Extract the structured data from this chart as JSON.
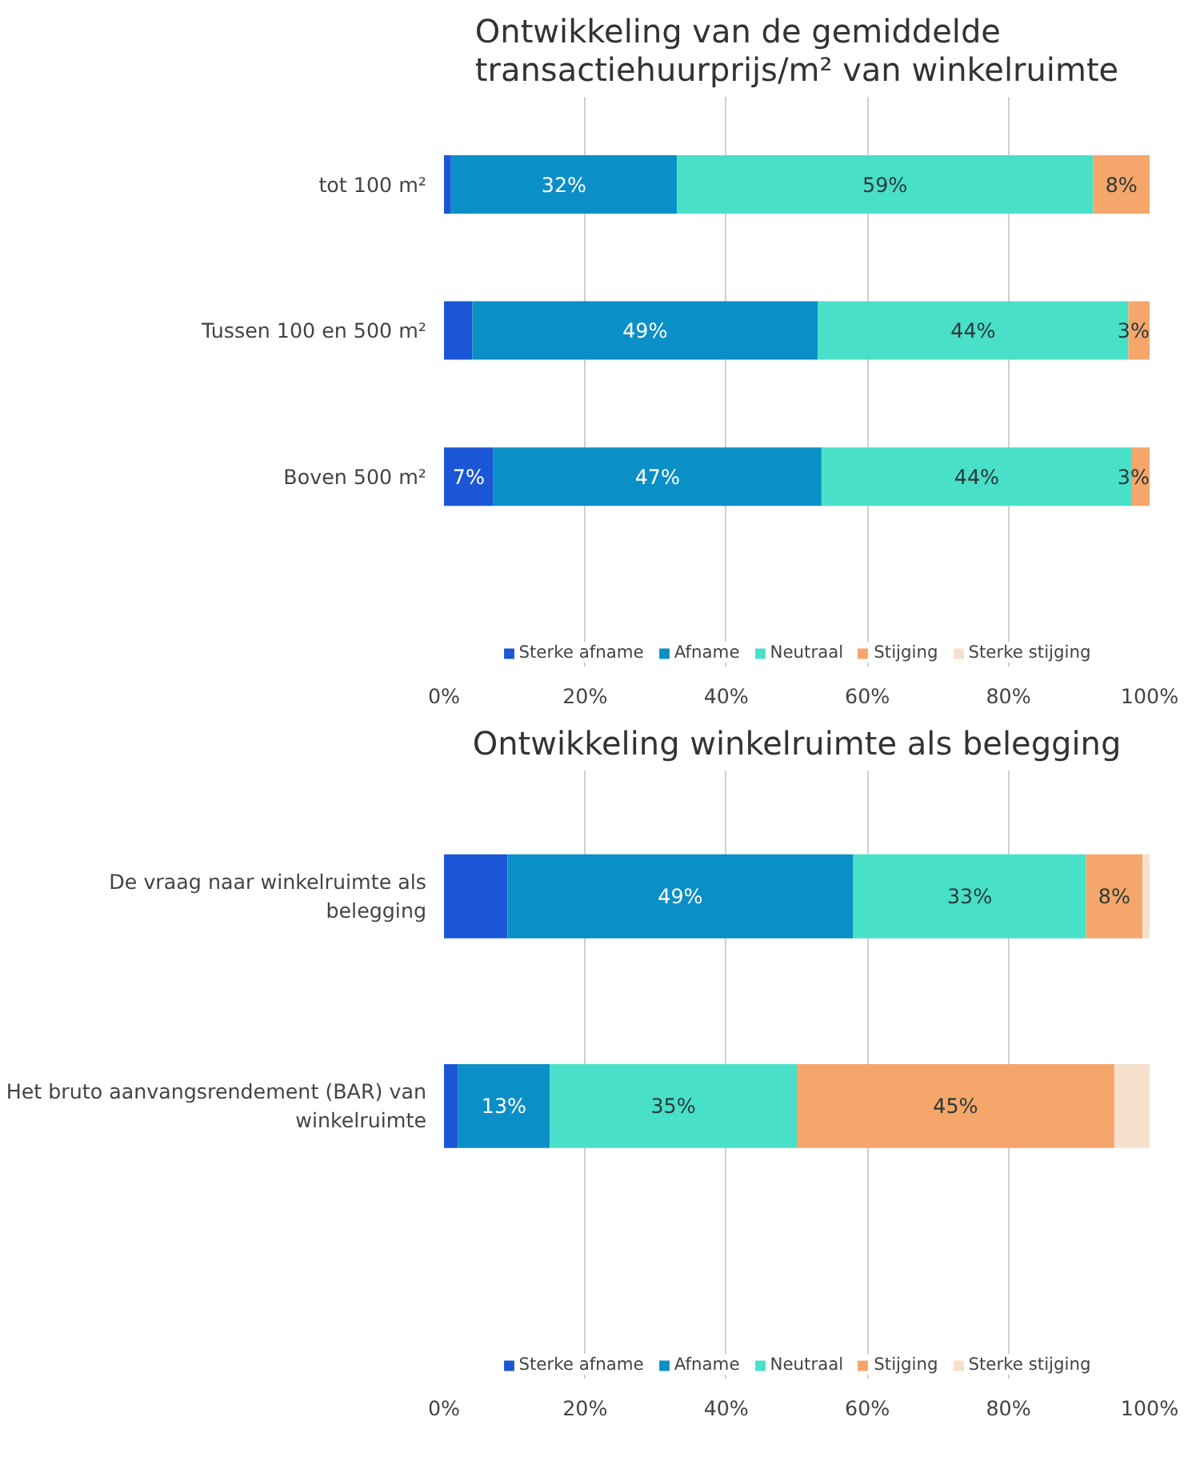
{
  "chart_data": [
    {
      "type": "bar",
      "orientation": "horizontal",
      "stacked": true,
      "title": "Ontwikkeling van de gemiddelde transactiehuurprijs/m² van winkelruimte",
      "categories": [
        "tot 100 m²",
        "Tussen 100 en 500 m²",
        "Boven 500 m²"
      ],
      "xlim": [
        0,
        100
      ],
      "xticks": [
        {
          "value": 0,
          "label": "0%"
        },
        {
          "value": 20,
          "label": "20%"
        },
        {
          "value": 40,
          "label": "40%"
        },
        {
          "value": 60,
          "label": "60%"
        },
        {
          "value": 80,
          "label": "80%"
        },
        {
          "value": 100,
          "label": "100%"
        }
      ],
      "grid": "x",
      "legend": "bottom",
      "series": [
        {
          "name": "Sterke afname",
          "color": "#1a56d6",
          "values": [
            1,
            4,
            7
          ],
          "value_labels": [
            null,
            null,
            "7%"
          ]
        },
        {
          "name": "Afname",
          "color": "#0a8fc6",
          "values": [
            32,
            49,
            46.5
          ],
          "value_labels": [
            "32%",
            "49%",
            "47%"
          ]
        },
        {
          "name": "Neutraal",
          "color": "#48e0c8",
          "values": [
            59,
            44,
            44
          ],
          "value_labels": [
            "59%",
            "44%",
            "44%"
          ]
        },
        {
          "name": "Stijging",
          "color": "#f5a66a",
          "values": [
            8,
            3,
            2.5
          ],
          "value_labels": [
            "8%",
            "3%",
            "3%"
          ]
        },
        {
          "name": "Sterke stijging",
          "color": "#f5e0cc",
          "values": [
            0,
            0,
            0
          ],
          "value_labels": [
            null,
            null,
            null
          ]
        }
      ]
    },
    {
      "type": "bar",
      "orientation": "horizontal",
      "stacked": true,
      "title": "Ontwikkeling winkelruimte als belegging",
      "categories": [
        "De vraag naar winkelruimte als belegging",
        "Het bruto aanvangsrendement (BAR) van winkelruimte"
      ],
      "xlim": [
        0,
        100
      ],
      "xticks": [
        {
          "value": 0,
          "label": "0%"
        },
        {
          "value": 20,
          "label": "20%"
        },
        {
          "value": 40,
          "label": "40%"
        },
        {
          "value": 60,
          "label": "60%"
        },
        {
          "value": 80,
          "label": "80%"
        },
        {
          "value": 100,
          "label": "100%"
        }
      ],
      "grid": "x",
      "legend": "bottom",
      "series": [
        {
          "name": "Sterke afname",
          "color": "#1a56d6",
          "values": [
            9,
            2
          ],
          "value_labels": [
            null,
            null
          ]
        },
        {
          "name": "Afname",
          "color": "#0a8fc6",
          "values": [
            49,
            13
          ],
          "value_labels": [
            "49%",
            "13%"
          ]
        },
        {
          "name": "Neutraal",
          "color": "#48e0c8",
          "values": [
            33,
            35
          ],
          "value_labels": [
            "33%",
            "35%"
          ]
        },
        {
          "name": "Stijging",
          "color": "#f5a66a",
          "values": [
            8,
            45
          ],
          "value_labels": [
            "8%",
            "45%"
          ]
        },
        {
          "name": "Sterke stijging",
          "color": "#f5e0cc",
          "values": [
            1,
            5
          ],
          "value_labels": [
            null,
            null
          ]
        }
      ]
    }
  ]
}
